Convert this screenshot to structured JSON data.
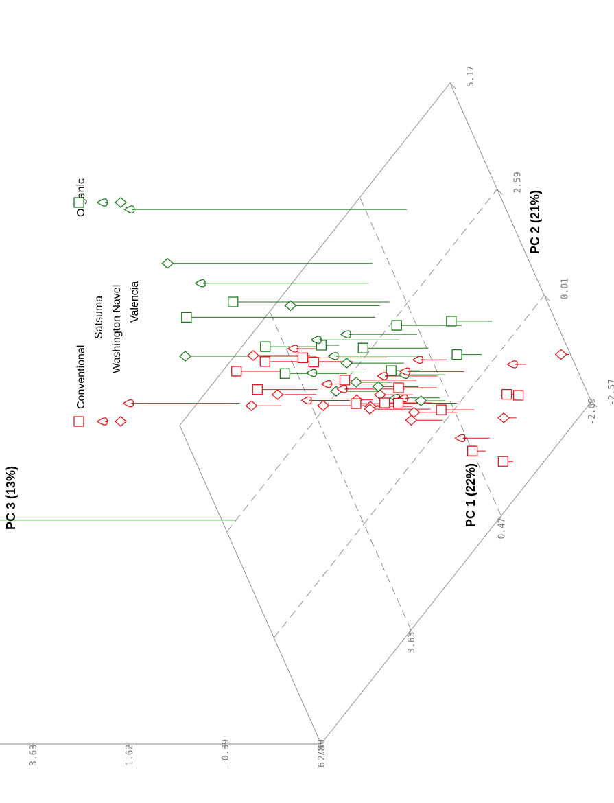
{
  "chart_data": {
    "type": "scatter",
    "projection": "3d",
    "axes": {
      "x": {
        "label": "PC 1 (22%)",
        "ticks": [
          "6.78",
          "3.63",
          "0.47",
          "-2.69"
        ]
      },
      "y": {
        "label": "PC 2 (21%)",
        "ticks": [
          "-2.57",
          "0.01",
          "2.59",
          "5.17"
        ]
      },
      "z": {
        "label": "PC 3 (13%)",
        "ticks": [
          "-2.40",
          "-0.39",
          "1.62",
          "3.63"
        ]
      }
    },
    "legend": {
      "groups": [
        "Conventional",
        "Organic"
      ],
      "varieties": [
        "Satsuma",
        "Washington Navel",
        "Valencia"
      ],
      "group_colors": {
        "Conventional": "#e8141b",
        "Organic": "#1a7a1a"
      },
      "variety_markers": {
        "Satsuma": "square",
        "Washington Navel": "spade",
        "Valencia": "diamond"
      },
      "placement": "top"
    },
    "series": [
      {
        "name": "Conventional Satsuma",
        "group": "Conventional",
        "variety": "Satsuma",
        "points": [
          {
            "x": 3.96,
            "y": 4.01,
            "z": -1.46
          },
          {
            "x": 3.34,
            "y": 3.02,
            "z": -1.15
          },
          {
            "x": 2.26,
            "y": 2.75,
            "z": -0.56
          },
          {
            "x": 2.49,
            "y": 2.94,
            "z": -1.79
          },
          {
            "x": 1.46,
            "y": 2.14,
            "z": -0.64
          },
          {
            "x": 1.26,
            "y": 0.85,
            "z": -1.14
          },
          {
            "x": 1.02,
            "y": 1.21,
            "z": -0.9
          },
          {
            "x": 0.91,
            "y": 0.56,
            "z": -1.42
          },
          {
            "x": 0.64,
            "y": 0.69,
            "z": -1.6
          },
          {
            "x": 0.35,
            "y": 0.06,
            "z": -1.18
          },
          {
            "x": 0.02,
            "y": -0.39,
            "z": -1.71
          },
          {
            "x": -1.09,
            "y": -0.99,
            "z": -2.19
          },
          {
            "x": -1.2,
            "y": -1.11,
            "z": -2.32
          },
          {
            "x": -0.34,
            "y": -1.96,
            "z": -2.19
          },
          {
            "x": 0.17,
            "y": -1.26,
            "z": -2.12
          }
        ]
      },
      {
        "name": "Conventional Washington Navel",
        "group": "Conventional",
        "variety": "Washington Navel",
        "points": [
          {
            "x": 5.21,
            "y": 4.33,
            "z": -0.08
          },
          {
            "x": 2.71,
            "y": 3.46,
            "z": -1.7
          },
          {
            "x": 2.72,
            "y": 2.21,
            "z": -1.51
          },
          {
            "x": 1.71,
            "y": 1.72,
            "z": -1.14
          },
          {
            "x": 1.37,
            "y": 1.3,
            "z": -1.1
          },
          {
            "x": 0.51,
            "y": 0.86,
            "z": -1.26
          },
          {
            "x": -0.14,
            "y": 0.4,
            "z": -1.17
          },
          {
            "x": -0.04,
            "y": -1.13,
            "z": -1.8
          },
          {
            "x": -1.6,
            "y": -0.71,
            "z": -2.12
          },
          {
            "x": 1.41,
            "y": 1.11,
            "z": -2.32
          },
          {
            "x": 0.14,
            "y": 0.93,
            "z": -1.81
          }
        ]
      },
      {
        "name": "Conventional Valencia",
        "group": "Conventional",
        "variety": "Valencia",
        "points": [
          {
            "x": 4.3,
            "y": 3.47,
            "z": -1.77
          },
          {
            "x": 3.41,
            "y": 2.96,
            "z": -1.59
          },
          {
            "x": 2.19,
            "y": 1.76,
            "z": -2.06
          },
          {
            "x": 2.1,
            "y": 1.54,
            "z": -1.22
          },
          {
            "x": 1.24,
            "y": 1.05,
            "z": -1.71
          },
          {
            "x": 0.99,
            "y": 0.48,
            "z": -1.13
          },
          {
            "x": 0.83,
            "y": 0.07,
            "z": -1.74
          },
          {
            "x": -0.85,
            "y": -1.35,
            "z": -2.13
          },
          {
            "x": 1.37,
            "y": 0.88,
            "z": -1.52
          },
          {
            "x": -2.66,
            "y": -1.4,
            "z": -2.23
          },
          {
            "x": 0.42,
            "y": -0.1,
            "z": -1.49
          },
          {
            "x": 3.16,
            "y": 3.69,
            "z": -1.21
          }
        ]
      },
      {
        "name": "Organic Satsuma",
        "group": "Organic",
        "variety": "Satsuma",
        "points": [
          {
            "x": 1.32,
            "y": 3.0,
            "z": 1.55
          },
          {
            "x": 0.85,
            "y": 2.96,
            "z": 0.87
          },
          {
            "x": -1.26,
            "y": 0.64,
            "z": -1.55
          },
          {
            "x": -0.54,
            "y": 1.17,
            "z": -1.04
          },
          {
            "x": -0.7,
            "y": 0.32,
            "z": -1.88
          },
          {
            "x": 2.78,
            "y": 3.57,
            "z": -1.19
          },
          {
            "x": 2.41,
            "y": 3.28,
            "z": -2.03
          },
          {
            "x": 2.51,
            "y": 2.68,
            "z": -1.1
          },
          {
            "x": 0.43,
            "y": 1.47,
            "z": -1.03
          },
          {
            "x": 0.85,
            "y": 1.29,
            "z": -1.8
          }
        ]
      },
      {
        "name": "Organic Washington Navel",
        "group": "Organic",
        "variety": "Washington Navel",
        "points": [
          {
            "x": -0.47,
            "y": 4.05,
            "z": 3.4
          },
          {
            "x": 1.14,
            "y": 3.67,
            "z": 1.1
          },
          {
            "x": 0.64,
            "y": 1.46,
            "z": -0.54
          },
          {
            "x": 0.67,
            "y": 0.47,
            "z": -1.47
          },
          {
            "x": 1.01,
            "y": 2.18,
            "z": -0.68
          },
          {
            "x": 0.33,
            "y": 0.73,
            "z": -1.55
          },
          {
            "x": 0.55,
            "y": 1.91,
            "z": -0.92
          },
          {
            "x": 2.12,
            "y": 2.35,
            "z": -1.31
          }
        ]
      },
      {
        "name": "Organic Valencia",
        "group": "Organic",
        "variety": "Valencia",
        "points": [
          {
            "x": 0.84,
            "y": 3.89,
            "z": 1.89
          },
          {
            "x": 6.46,
            "y": 2.59,
            "z": 3.69
          },
          {
            "x": 1.1,
            "y": 3.09,
            "z": -0.53
          },
          {
            "x": 3.02,
            "y": 3.55,
            "z": 0.35
          },
          {
            "x": 1.04,
            "y": 1.07,
            "z": -1.56
          },
          {
            "x": 0.58,
            "y": 0.32,
            "z": -1.89
          },
          {
            "x": 1.13,
            "y": 1.72,
            "z": -1.2
          },
          {
            "x": 1.59,
            "y": 1.66,
            "z": -1.65
          },
          {
            "x": 2.0,
            "y": 1.8,
            "z": -1.53
          }
        ]
      }
    ]
  }
}
